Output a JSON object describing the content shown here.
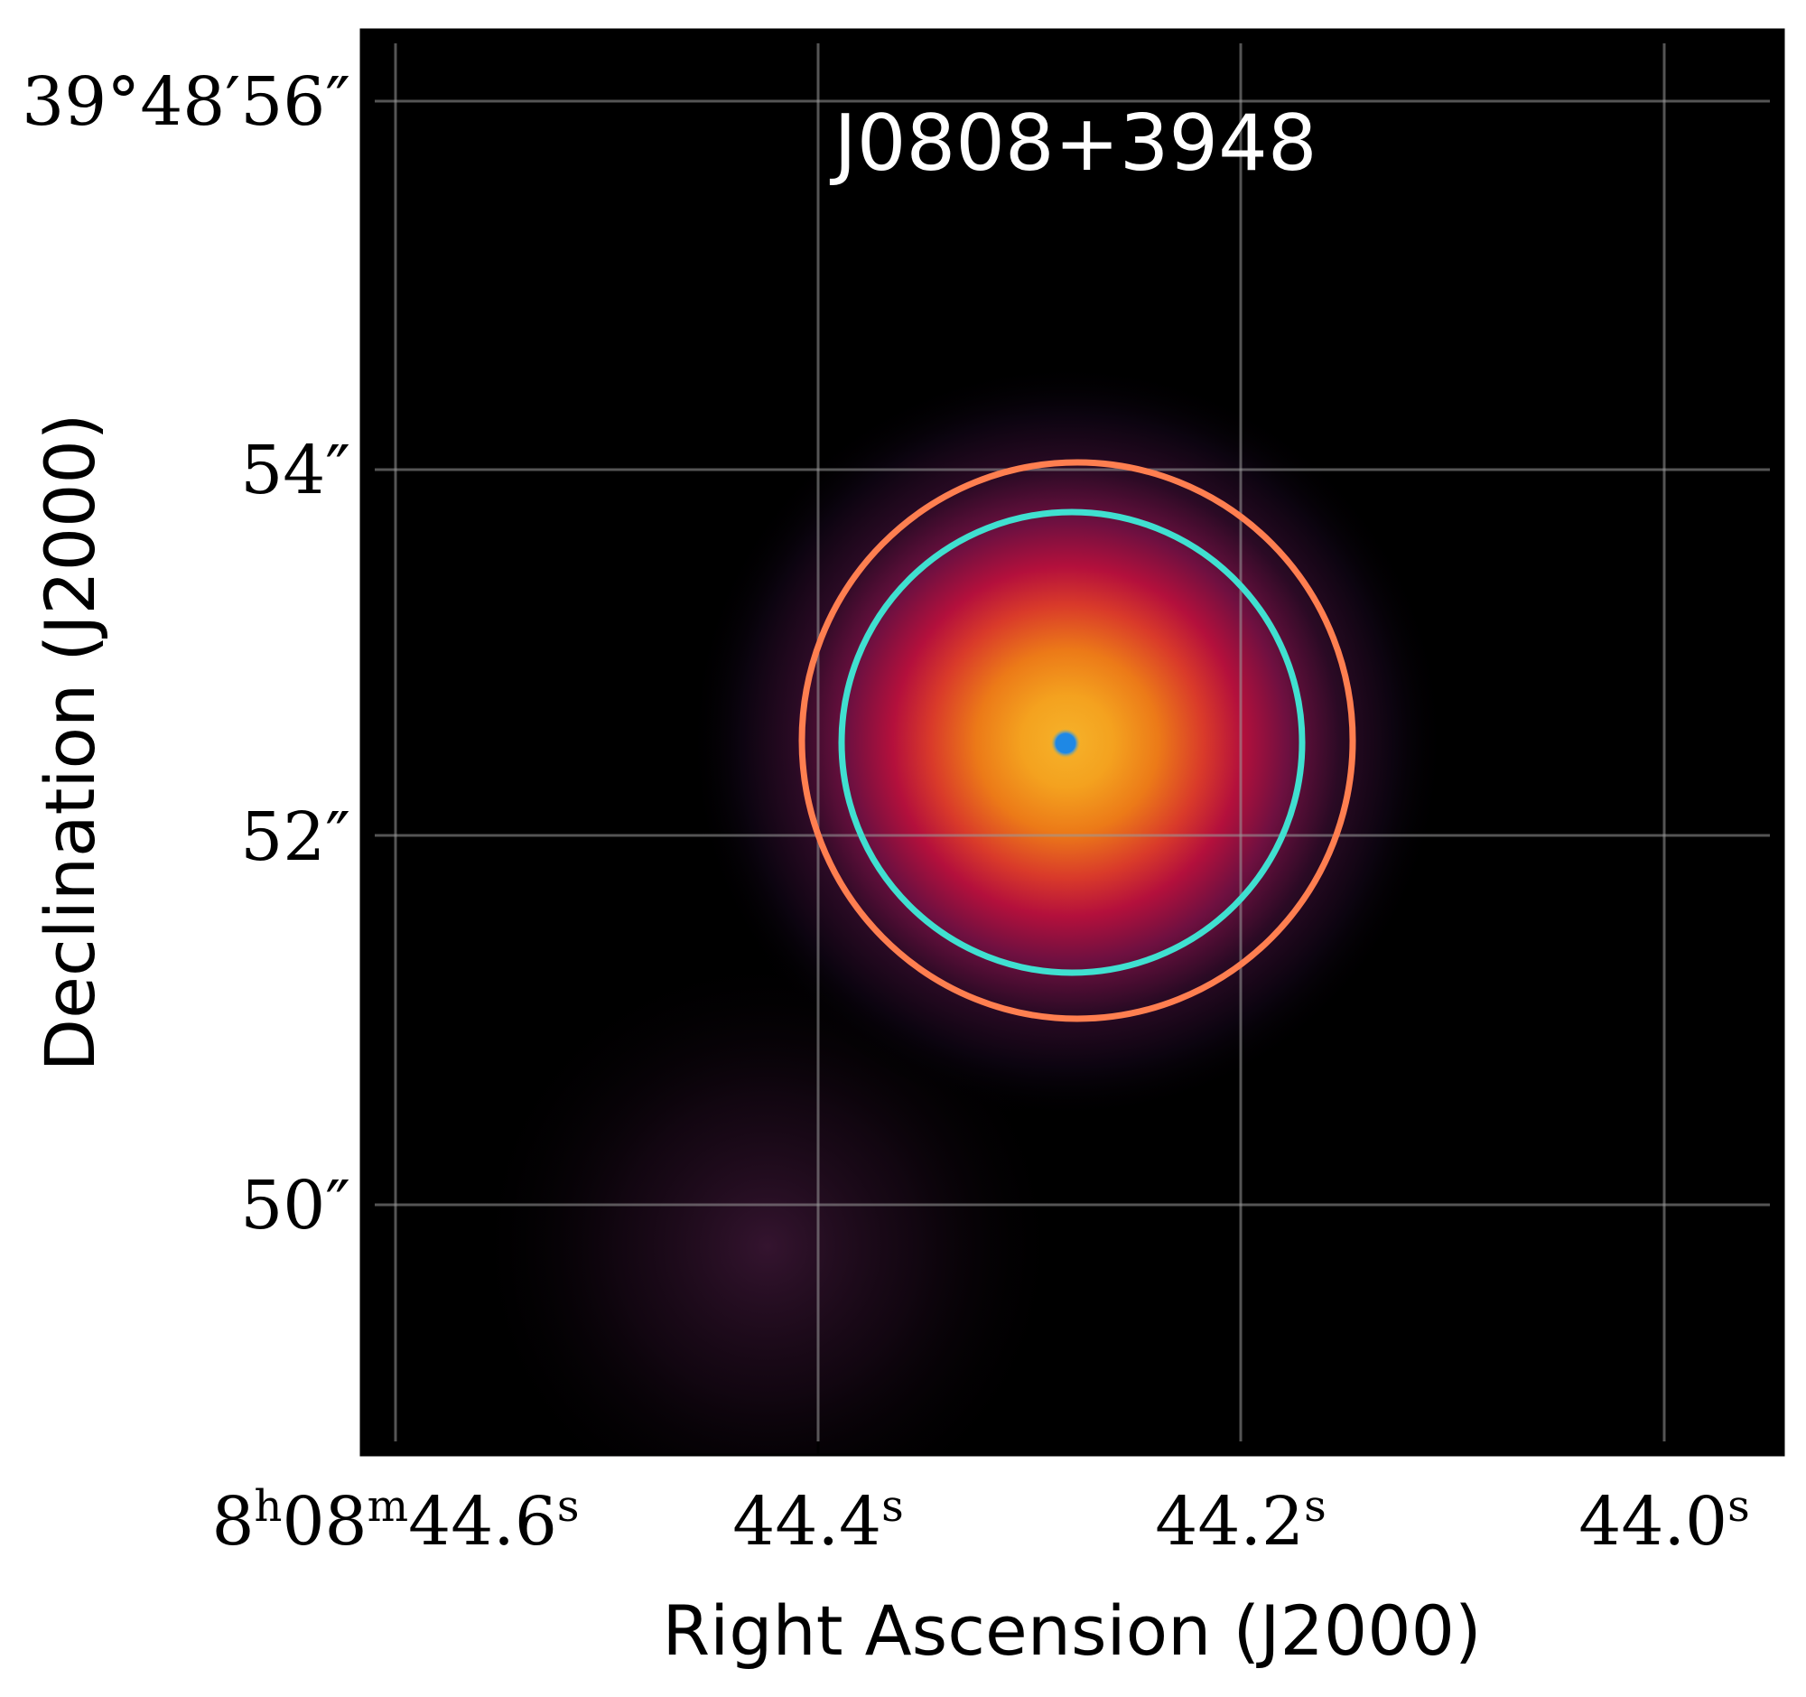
{
  "figure": {
    "object_name": "J0808+3948",
    "xlabel": "Right Ascension (J2000)",
    "ylabel": "Declination (J2000)",
    "ra_ticks": [
      {
        "base": "8",
        "sup1": "h",
        "mid": "08",
        "sup2": "m",
        "val": "44.6",
        "sup3": "s"
      },
      {
        "val": "44.4",
        "sup": "s"
      },
      {
        "val": "44.2",
        "sup": "s"
      },
      {
        "val": "44.0",
        "sup": "s"
      }
    ],
    "dec_ticks": [
      {
        "label": "39°48′56″"
      },
      {
        "label": "54″"
      },
      {
        "label": "52″"
      },
      {
        "label": "50″"
      }
    ],
    "colors": {
      "outer_circle": "#ff7f50",
      "inner_circle": "#40e0d0",
      "center_marker": "#1e88e5",
      "background": "#000000",
      "grid": "#9a9a9a"
    }
  }
}
